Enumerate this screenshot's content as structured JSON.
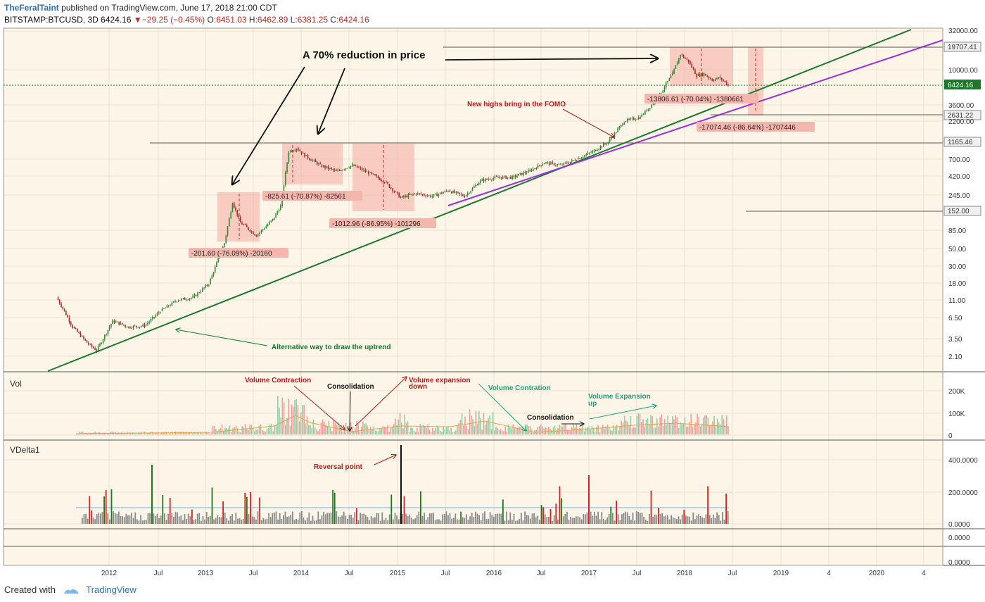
{
  "header": {
    "author": "TheFeralTaint",
    "published": "published on TradingView.com, June 17, 2018 21:00 CDT",
    "symbol": "BITSTAMP:BTCUSD, 3D",
    "last": "6424.16",
    "change": "−29.25 (−0.45%)",
    "o_label": "O:",
    "o": "6451.03",
    "h_label": "H:",
    "h": "6462.89",
    "l_label": "L:",
    "l": "6381.25",
    "c_label": "C:",
    "c": "6424.16"
  },
  "footer": {
    "created_with": "Created with",
    "brand": "TradingView"
  },
  "colors": {
    "background": "#fdf6e8",
    "up": "#26a69a",
    "down": "#ef5350",
    "uptrend_green": "#1b7a2e",
    "uptrend_purple": "#9b30e0",
    "annotation_red": "#b71c1c",
    "annotation_green": "#0a7a2a",
    "box_fill": "#f4a9a0"
  },
  "chart_data": [
    {
      "type": "line",
      "panel": "price",
      "yscale": "log",
      "ylim": [
        1.5,
        32000
      ],
      "y_ticks": [
        "32000.00",
        "19707.41",
        "10000.00",
        "6424.16",
        "3600.00",
        "2631.22",
        "2200.00",
        "1165.46",
        "700.00",
        "420.00",
        "245.00",
        "152.00",
        "85.00",
        "50.00",
        "30.00",
        "18.00",
        "11.00",
        "6.50",
        "3.50",
        "2.10"
      ],
      "x_ticks": [
        "2012",
        "Jul",
        "2013",
        "Jul",
        "2014",
        "Jul",
        "2015",
        "Jul",
        "2016",
        "Jul",
        "2017",
        "Jul",
        "2018",
        "Jul",
        "2019",
        "4",
        "2020",
        "4"
      ],
      "series": [
        {
          "x": [
            "2011-06",
            "2011-07",
            "2011-08",
            "2011-10",
            "2011-11",
            "2012-01",
            "2012-03",
            "2012-05",
            "2012-07",
            "2012-09",
            "2012-11",
            "2013-01",
            "2013-03",
            "2013-04",
            "2013-05",
            "2013-07",
            "2013-09",
            "2013-10",
            "2013-11",
            "2013-12",
            "2014-01",
            "2014-03",
            "2014-05",
            "2014-07",
            "2014-09",
            "2014-11",
            "2015-01",
            "2015-03",
            "2015-05",
            "2015-07",
            "2015-09",
            "2015-11",
            "2016-01",
            "2016-03",
            "2016-05",
            "2016-07",
            "2016-09",
            "2016-11",
            "2017-01",
            "2017-03",
            "2017-05",
            "2017-07",
            "2017-09",
            "2017-11",
            "2017-12",
            "2018-01",
            "2018-02",
            "2018-03",
            "2018-04",
            "2018-05",
            "2018-06"
          ],
          "values": [
            12,
            8,
            5,
            3,
            2.5,
            6,
            5,
            5.2,
            8,
            11,
            12,
            18,
            60,
            200,
            110,
            75,
            120,
            180,
            900,
            1000,
            800,
            600,
            500,
            600,
            480,
            370,
            230,
            260,
            240,
            285,
            240,
            380,
            420,
            420,
            500,
            650,
            600,
            720,
            900,
            1200,
            2200,
            2500,
            4200,
            9000,
            16000,
            13000,
            8500,
            9000,
            7500,
            8000,
            6424.16
          ]
        }
      ]
    },
    {
      "type": "bar",
      "panel": "Vol",
      "y_ticks": [
        "200K",
        "100K",
        "0"
      ]
    },
    {
      "type": "bar",
      "panel": "VDelta1",
      "y_ticks": [
        "400.0000",
        "200.0000",
        "0.0000"
      ]
    }
  ],
  "panels": {
    "vol_label": "Vol",
    "vdelta_label": "VDelta1",
    "empty_tick1": "0.0000",
    "empty_tick2": "0.0000"
  },
  "annotations": {
    "reduction": "A 70% reduction in price",
    "fomo": "New highs bring in the FOMO",
    "alt_uptrend": "Alternative way to draw the uptrend",
    "vol_contraction": "Volume Contraction",
    "consolidation1": "Consolidation",
    "vol_expansion_down_1": "Volume expansion",
    "vol_expansion_down_2": "down",
    "vol_contration": "Volume Contration",
    "consolidation2": "Consolidation",
    "vol_expansion_up_1": "Volume Expansion",
    "vol_expansion_up_2": "up",
    "reversal": "Reversal point"
  },
  "measure_labels": {
    "m2013": "-201.60 (-76.09%) -20160",
    "m2014a": "-825.61 (-70.87%) -82561",
    "m2014b": "-1012.96 (-86.95%) -101296",
    "m2018a": "-13806.61 (-70.04%) -1380661",
    "m2018b": "-17074.46 (-86.64%) -1707446"
  }
}
